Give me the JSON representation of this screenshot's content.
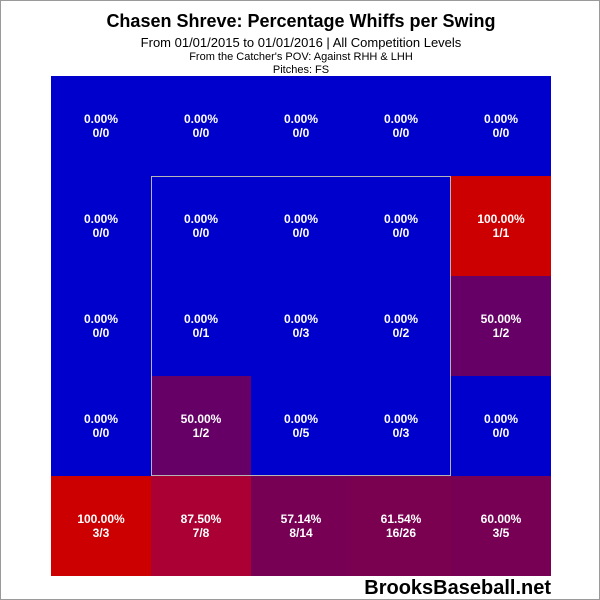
{
  "title": "Chasen Shreve: Percentage Whiffs per Swing",
  "subtitle": "From 01/01/2015 to 01/01/2016 | All Competition Levels",
  "note_pov": "From the Catcher's POV:  Against RHH & LHH",
  "note_pitches": "Pitches:  FS",
  "watermark": "BrooksBaseball.net",
  "colors": {
    "blue": "#0000cc",
    "red": "#cc0000",
    "purple_50": "#660066",
    "maroon_875": "#aa0033",
    "purple_57": "#770055",
    "purple_61": "#7a0050",
    "purple_60": "#770055"
  },
  "chart_data": {
    "type": "heatmap",
    "rows": 5,
    "cols": 5,
    "cells": [
      [
        {
          "pct": "0.00%",
          "frac": "0/0",
          "color": "#0000cc"
        },
        {
          "pct": "0.00%",
          "frac": "0/0",
          "color": "#0000cc"
        },
        {
          "pct": "0.00%",
          "frac": "0/0",
          "color": "#0000cc"
        },
        {
          "pct": "0.00%",
          "frac": "0/0",
          "color": "#0000cc"
        },
        {
          "pct": "0.00%",
          "frac": "0/0",
          "color": "#0000cc"
        }
      ],
      [
        {
          "pct": "0.00%",
          "frac": "0/0",
          "color": "#0000cc"
        },
        {
          "pct": "0.00%",
          "frac": "0/0",
          "color": "#0000cc"
        },
        {
          "pct": "0.00%",
          "frac": "0/0",
          "color": "#0000cc"
        },
        {
          "pct": "0.00%",
          "frac": "0/0",
          "color": "#0000cc"
        },
        {
          "pct": "100.00%",
          "frac": "1/1",
          "color": "#cc0000"
        }
      ],
      [
        {
          "pct": "0.00%",
          "frac": "0/0",
          "color": "#0000cc"
        },
        {
          "pct": "0.00%",
          "frac": "0/1",
          "color": "#0000cc"
        },
        {
          "pct": "0.00%",
          "frac": "0/3",
          "color": "#0000cc"
        },
        {
          "pct": "0.00%",
          "frac": "0/2",
          "color": "#0000cc"
        },
        {
          "pct": "50.00%",
          "frac": "1/2",
          "color": "#660066"
        }
      ],
      [
        {
          "pct": "0.00%",
          "frac": "0/0",
          "color": "#0000cc"
        },
        {
          "pct": "50.00%",
          "frac": "1/2",
          "color": "#660066"
        },
        {
          "pct": "0.00%",
          "frac": "0/5",
          "color": "#0000cc"
        },
        {
          "pct": "0.00%",
          "frac": "0/3",
          "color": "#0000cc"
        },
        {
          "pct": "0.00%",
          "frac": "0/0",
          "color": "#0000cc"
        }
      ],
      [
        {
          "pct": "100.00%",
          "frac": "3/3",
          "color": "#cc0000"
        },
        {
          "pct": "87.50%",
          "frac": "7/8",
          "color": "#aa0033"
        },
        {
          "pct": "57.14%",
          "frac": "8/14",
          "color": "#770055"
        },
        {
          "pct": "61.54%",
          "frac": "16/26",
          "color": "#7a0050"
        },
        {
          "pct": "60.00%",
          "frac": "3/5",
          "color": "#770055"
        }
      ]
    ],
    "strike_zone": {
      "rows": [
        1,
        3
      ],
      "cols": [
        1,
        3
      ]
    },
    "grid": false,
    "legend": "none"
  }
}
